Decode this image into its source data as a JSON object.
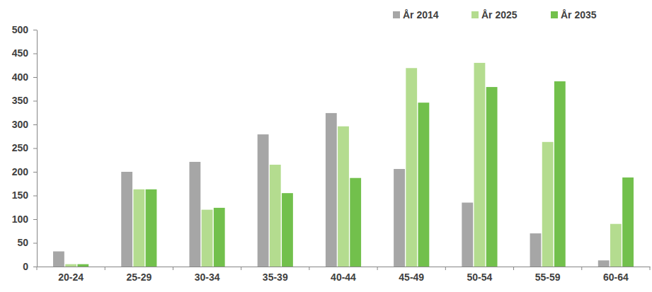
{
  "chart_data": {
    "type": "bar",
    "categories": [
      "20-24",
      "25-29",
      "30-34",
      "35-39",
      "40-44",
      "45-49",
      "50-54",
      "55-59",
      "60-64"
    ],
    "series": [
      {
        "name": "År 2014",
        "color": "#a6a6a6",
        "values": [
          32,
          200,
          221,
          279,
          324,
          206,
          135,
          70,
          13
        ]
      },
      {
        "name": "År 2025",
        "color": "#b4dc8f",
        "values": [
          5,
          163,
          120,
          215,
          296,
          419,
          430,
          263,
          90
        ]
      },
      {
        "name": "År 2035",
        "color": "#72c04c",
        "values": [
          5,
          163,
          124,
          155,
          187,
          346,
          379,
          391,
          188
        ]
      }
    ],
    "ylim": [
      0,
      500
    ],
    "yticks": [
      0,
      50,
      100,
      150,
      200,
      250,
      300,
      350,
      400,
      450,
      500
    ],
    "grid": false,
    "legend": "top-right"
  }
}
